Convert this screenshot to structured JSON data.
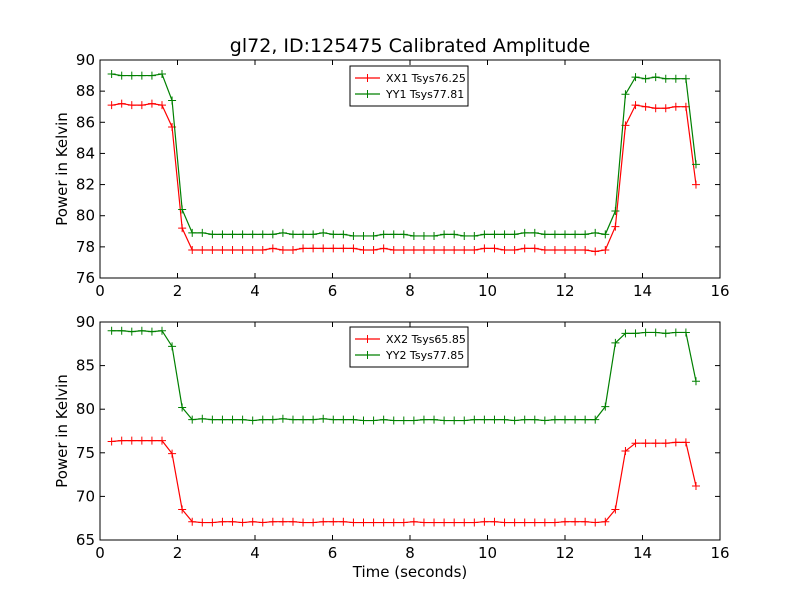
{
  "chart_data": [
    {
      "type": "line",
      "title": "gl72, ID:125475 Calibrated Amplitude",
      "xlabel": "",
      "ylabel": "Power in Kelvin",
      "xlim": [
        0,
        16
      ],
      "ylim": [
        76,
        90
      ],
      "xticks": [
        0,
        2,
        4,
        6,
        8,
        10,
        12,
        14,
        16
      ],
      "yticks": [
        76,
        78,
        80,
        82,
        84,
        86,
        88,
        90
      ],
      "grid": false,
      "legend_position": "top-center",
      "x": [
        0.3,
        0.56,
        0.82,
        1.08,
        1.34,
        1.6,
        1.86,
        2.12,
        2.38,
        2.64,
        2.9,
        3.16,
        3.42,
        3.68,
        3.94,
        4.2,
        4.46,
        4.72,
        4.98,
        5.24,
        5.5,
        5.76,
        6.02,
        6.28,
        6.54,
        6.8,
        7.06,
        7.32,
        7.58,
        7.84,
        8.1,
        8.36,
        8.62,
        8.88,
        9.14,
        9.4,
        9.66,
        9.92,
        10.18,
        10.44,
        10.7,
        10.96,
        11.22,
        11.48,
        11.74,
        12.0,
        12.26,
        12.52,
        12.78,
        13.04,
        13.3,
        13.56,
        13.82,
        14.08,
        14.34,
        14.6,
        14.86,
        15.12,
        15.38
      ],
      "series": [
        {
          "name": "XX1 Tsys76.25",
          "color": "#ff0000",
          "values": [
            87.1,
            87.2,
            87.1,
            87.1,
            87.2,
            87.1,
            85.7,
            79.2,
            77.8,
            77.8,
            77.8,
            77.8,
            77.8,
            77.8,
            77.8,
            77.8,
            77.9,
            77.8,
            77.8,
            77.9,
            77.9,
            77.9,
            77.9,
            77.9,
            77.9,
            77.8,
            77.8,
            77.9,
            77.8,
            77.8,
            77.8,
            77.8,
            77.8,
            77.8,
            77.8,
            77.8,
            77.8,
            77.9,
            77.9,
            77.8,
            77.8,
            77.9,
            77.9,
            77.8,
            77.8,
            77.8,
            77.8,
            77.8,
            77.7,
            77.8,
            79.3,
            85.8,
            87.1,
            87.0,
            86.9,
            86.9,
            87.0,
            87.0,
            82.0
          ]
        },
        {
          "name": "YY1 Tsys77.81",
          "color": "#008000",
          "values": [
            89.1,
            89.0,
            89.0,
            89.0,
            89.0,
            89.1,
            87.4,
            80.4,
            78.9,
            78.9,
            78.8,
            78.8,
            78.8,
            78.8,
            78.8,
            78.8,
            78.8,
            78.9,
            78.8,
            78.8,
            78.8,
            78.9,
            78.8,
            78.8,
            78.7,
            78.7,
            78.7,
            78.8,
            78.8,
            78.8,
            78.7,
            78.7,
            78.7,
            78.8,
            78.8,
            78.7,
            78.7,
            78.8,
            78.8,
            78.8,
            78.8,
            78.9,
            78.9,
            78.8,
            78.8,
            78.8,
            78.8,
            78.8,
            78.9,
            78.8,
            80.3,
            87.8,
            88.9,
            88.8,
            88.9,
            88.8,
            88.8,
            88.8,
            83.3
          ]
        }
      ]
    },
    {
      "type": "line",
      "title": "",
      "xlabel": "Time (seconds)",
      "ylabel": "Power in Kelvin",
      "xlim": [
        0,
        16
      ],
      "ylim": [
        65,
        90
      ],
      "xticks": [
        0,
        2,
        4,
        6,
        8,
        10,
        12,
        14,
        16
      ],
      "yticks": [
        65,
        70,
        75,
        80,
        85,
        90
      ],
      "grid": false,
      "legend_position": "top-center",
      "x": [
        0.3,
        0.56,
        0.82,
        1.08,
        1.34,
        1.6,
        1.86,
        2.12,
        2.38,
        2.64,
        2.9,
        3.16,
        3.42,
        3.68,
        3.94,
        4.2,
        4.46,
        4.72,
        4.98,
        5.24,
        5.5,
        5.76,
        6.02,
        6.28,
        6.54,
        6.8,
        7.06,
        7.32,
        7.58,
        7.84,
        8.1,
        8.36,
        8.62,
        8.88,
        9.14,
        9.4,
        9.66,
        9.92,
        10.18,
        10.44,
        10.7,
        10.96,
        11.22,
        11.48,
        11.74,
        12.0,
        12.26,
        12.52,
        12.78,
        13.04,
        13.3,
        13.56,
        13.82,
        14.08,
        14.34,
        14.6,
        14.86,
        15.12,
        15.38
      ],
      "series": [
        {
          "name": "XX2 Tsys65.85",
          "color": "#ff0000",
          "values": [
            76.3,
            76.4,
            76.4,
            76.4,
            76.4,
            76.4,
            74.9,
            68.5,
            67.1,
            67.0,
            67.0,
            67.1,
            67.1,
            67.0,
            67.1,
            67.0,
            67.1,
            67.1,
            67.1,
            67.0,
            67.0,
            67.1,
            67.1,
            67.1,
            67.0,
            67.0,
            67.0,
            67.0,
            67.0,
            67.0,
            67.1,
            67.0,
            67.0,
            67.0,
            67.0,
            67.0,
            67.0,
            67.1,
            67.1,
            67.0,
            67.0,
            67.0,
            67.0,
            67.0,
            67.0,
            67.1,
            67.1,
            67.1,
            67.0,
            67.1,
            68.5,
            75.2,
            76.1,
            76.1,
            76.1,
            76.1,
            76.2,
            76.2,
            71.2
          ]
        },
        {
          "name": "YY2 Tsys77.85",
          "color": "#008000",
          "values": [
            89.0,
            89.0,
            88.9,
            89.0,
            88.9,
            89.0,
            87.2,
            80.2,
            78.8,
            78.9,
            78.8,
            78.8,
            78.8,
            78.8,
            78.7,
            78.8,
            78.8,
            78.9,
            78.8,
            78.8,
            78.8,
            78.9,
            78.8,
            78.8,
            78.8,
            78.7,
            78.7,
            78.8,
            78.7,
            78.7,
            78.7,
            78.8,
            78.8,
            78.7,
            78.7,
            78.7,
            78.8,
            78.8,
            78.8,
            78.8,
            78.7,
            78.8,
            78.8,
            78.7,
            78.8,
            78.8,
            78.8,
            78.8,
            78.8,
            80.3,
            87.6,
            88.7,
            88.7,
            88.8,
            88.8,
            88.7,
            88.8,
            88.8,
            83.2
          ]
        }
      ]
    }
  ]
}
